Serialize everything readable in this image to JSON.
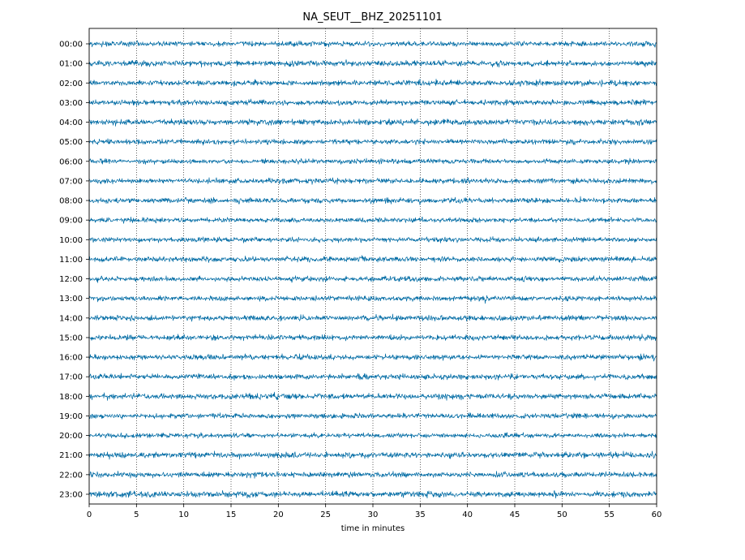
{
  "chart_data": {
    "type": "line",
    "title": "NA_SEUT__BHZ_20251101",
    "xlabel": "time in minutes",
    "ylabel": "",
    "xlim": [
      0,
      60
    ],
    "x_ticks": [
      0,
      5,
      10,
      15,
      20,
      25,
      30,
      35,
      40,
      45,
      50,
      55,
      60
    ],
    "y_tick_labels": [
      "00:00",
      "01:00",
      "02:00",
      "03:00",
      "04:00",
      "05:00",
      "06:00",
      "07:00",
      "08:00",
      "09:00",
      "10:00",
      "11:00",
      "12:00",
      "13:00",
      "14:00",
      "15:00",
      "16:00",
      "17:00",
      "18:00",
      "19:00",
      "20:00",
      "21:00",
      "22:00",
      "23:00"
    ],
    "grid": "vertical dotted at x ticks",
    "trace_color": "#006ba4",
    "series": [
      {
        "values": [
          0.55
        ]
      },
      {
        "values": [
          0.6
        ]
      },
      {
        "values": [
          0.58
        ]
      },
      {
        "values": [
          0.55
        ]
      },
      {
        "values": [
          0.6
        ]
      },
      {
        "values": [
          0.55
        ]
      },
      {
        "values": [
          0.52
        ]
      },
      {
        "values": [
          0.55
        ]
      },
      {
        "values": [
          0.55
        ]
      },
      {
        "values": [
          0.52
        ]
      },
      {
        "values": [
          0.52
        ]
      },
      {
        "values": [
          0.58
        ]
      },
      {
        "values": [
          0.55
        ]
      },
      {
        "values": [
          0.55
        ]
      },
      {
        "values": [
          0.6
        ]
      },
      {
        "values": [
          0.58
        ]
      },
      {
        "values": [
          0.55
        ]
      },
      {
        "values": [
          0.58
        ]
      },
      {
        "values": [
          0.62
        ]
      },
      {
        "values": [
          0.55
        ]
      },
      {
        "values": [
          0.52
        ]
      },
      {
        "values": [
          0.62
        ]
      },
      {
        "values": [
          0.6
        ]
      },
      {
        "values": [
          0.62
        ]
      }
    ]
  }
}
